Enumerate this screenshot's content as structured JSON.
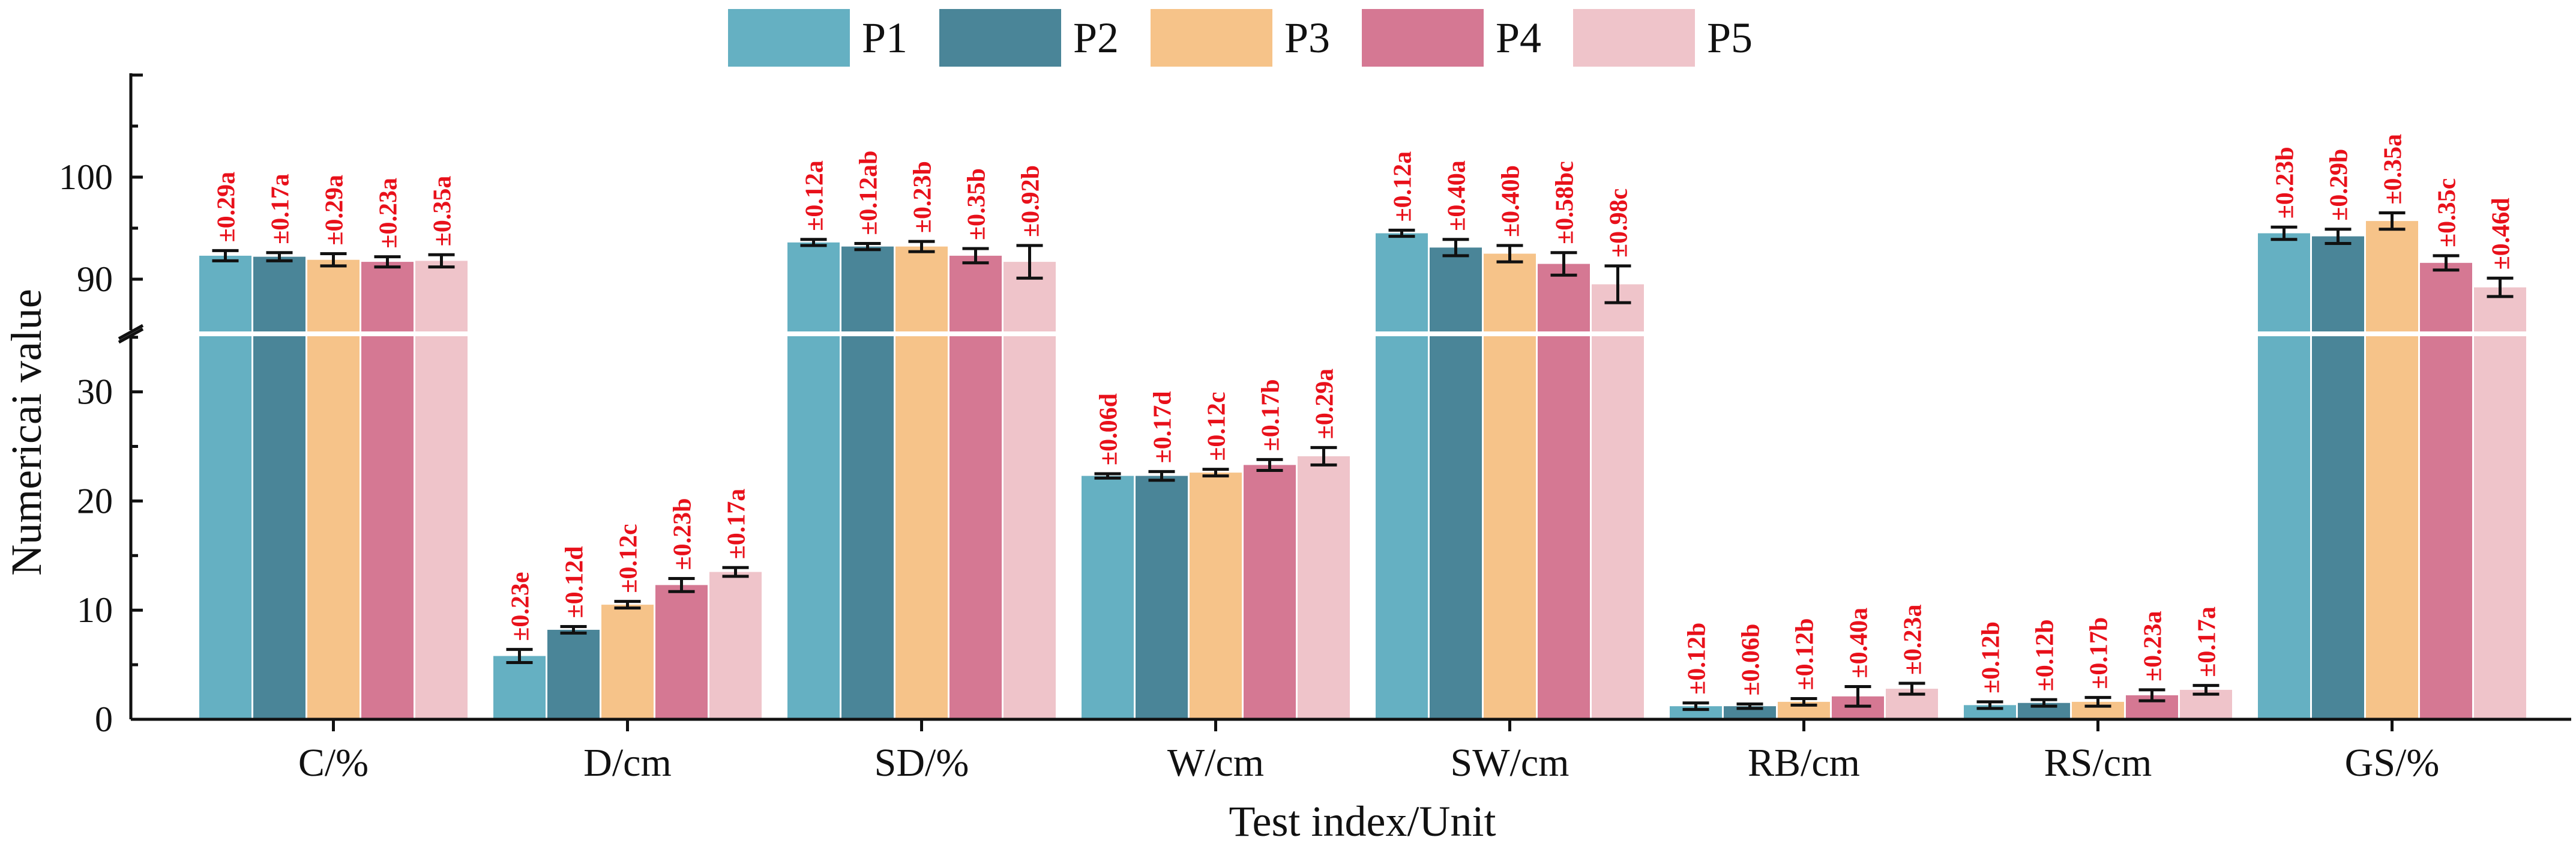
{
  "chart_data": {
    "type": "bar",
    "xlabel": "Test index/Unit",
    "ylabel": "Numericai value",
    "categories": [
      "C/%",
      "D/cm",
      "SD/%",
      "W/cm",
      "SW/cm",
      "RB/cm",
      "RS/cm",
      "GS/%"
    ],
    "y_axis": {
      "broken": true,
      "lower_segment": {
        "range": [
          0,
          35
        ],
        "ticks": [
          0,
          10,
          20,
          30
        ]
      },
      "upper_segment": {
        "range": [
          85,
          110
        ],
        "ticks": [
          90,
          100
        ]
      }
    },
    "legend_position": "top-center",
    "grid": false,
    "series": [
      {
        "name": "P1",
        "color": "#65b0c2",
        "values": [
          92.3,
          5.8,
          93.6,
          22.3,
          94.5,
          1.2,
          1.3,
          94.5
        ],
        "errors": [
          0.5,
          0.6,
          0.3,
          0.2,
          0.3,
          0.3,
          0.3,
          0.6
        ],
        "labels": [
          "±0.29a",
          "±0.23e",
          "±0.12a",
          "±0.06d",
          "±0.12a",
          "±0.12b",
          "±0.12b",
          "±0.23b"
        ]
      },
      {
        "name": "P2",
        "color": "#4a8598",
        "values": [
          92.2,
          8.2,
          93.2,
          22.3,
          93.1,
          1.2,
          1.5,
          94.2
        ],
        "errors": [
          0.4,
          0.3,
          0.3,
          0.4,
          0.8,
          0.2,
          0.3,
          0.7
        ],
        "labels": [
          "±0.17a",
          "±0.12d",
          "±0.12ab",
          "±0.17d",
          "±0.40a",
          "±0.06b",
          "±0.12b",
          "±0.29b"
        ]
      },
      {
        "name": "P3",
        "color": "#f6c389",
        "values": [
          91.9,
          10.5,
          93.2,
          22.6,
          92.5,
          1.6,
          1.6,
          95.7
        ],
        "errors": [
          0.6,
          0.3,
          0.5,
          0.3,
          0.8,
          0.3,
          0.4,
          0.8
        ],
        "labels": [
          "±0.29a",
          "±0.12c",
          "±0.23b",
          "±0.12c",
          "±0.40b",
          "±0.12b",
          "±0.17b",
          "±0.35a"
        ]
      },
      {
        "name": "P4",
        "color": "#d57893",
        "values": [
          91.7,
          12.3,
          92.3,
          23.3,
          91.5,
          2.1,
          2.2,
          91.6
        ],
        "errors": [
          0.5,
          0.6,
          0.7,
          0.5,
          1.1,
          0.9,
          0.5,
          0.7
        ],
        "labels": [
          "±0.23a",
          "±0.23b",
          "±0.35b",
          "±0.17b",
          "±0.58bc",
          "±0.40a",
          "±0.23a",
          "±0.35c"
        ]
      },
      {
        "name": "P5",
        "color": "#efc4ca",
        "values": [
          91.8,
          13.5,
          91.7,
          24.1,
          89.5,
          2.8,
          2.7,
          89.2
        ],
        "errors": [
          0.6,
          0.4,
          1.6,
          0.8,
          1.8,
          0.5,
          0.4,
          0.9
        ],
        "labels": [
          "±0.35a",
          "±0.17a",
          "±0.92b",
          "±0.29a",
          "±0.98c",
          "±0.23a",
          "±0.17a",
          "±0.46d"
        ]
      }
    ]
  }
}
